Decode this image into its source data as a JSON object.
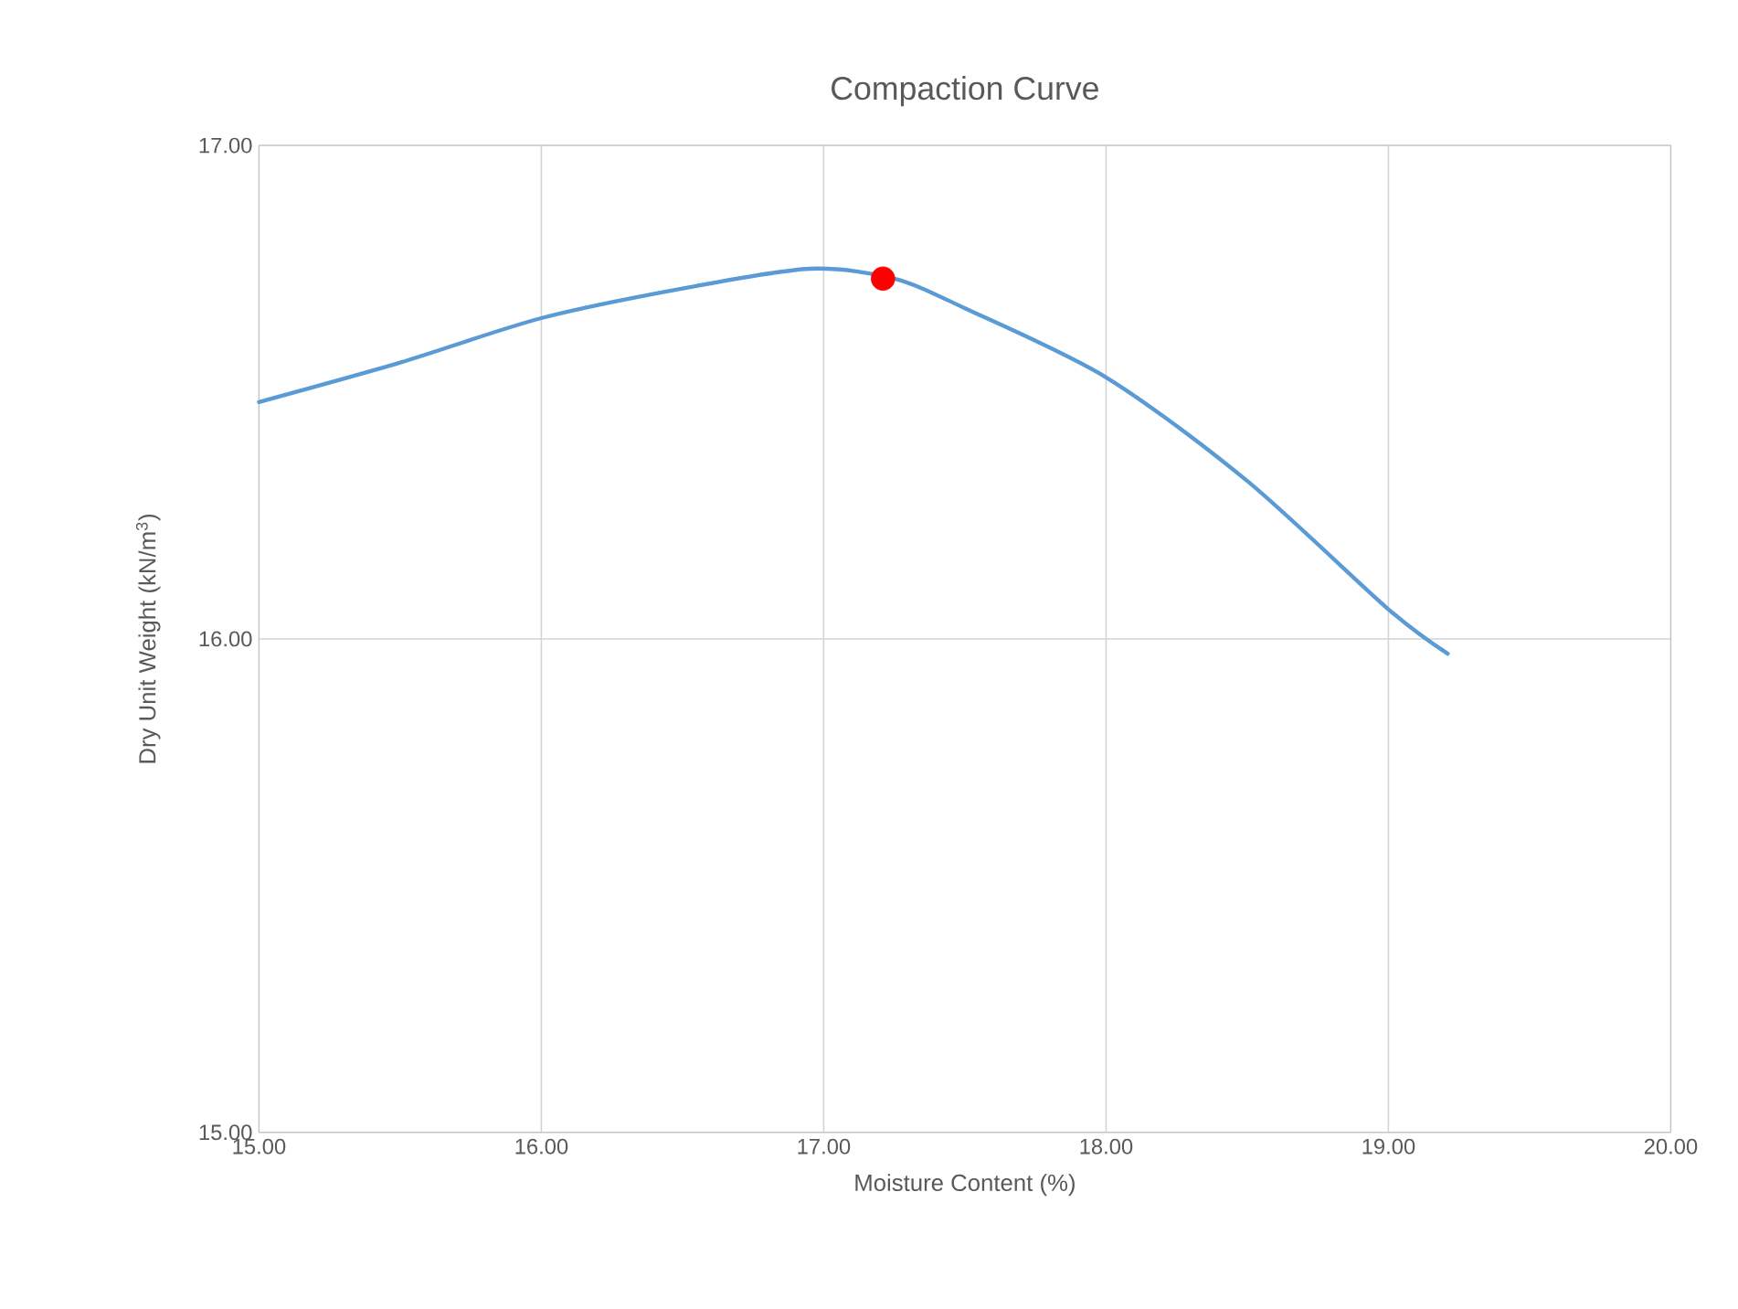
{
  "chart_data": {
    "type": "line",
    "title": "Compaction Curve",
    "xlabel": "Moisture Content (%)",
    "ylabel": "Dry Unit Weight (kN/m$^{3}$)",
    "xlim": [
      15,
      20
    ],
    "ylim": [
      15,
      17
    ],
    "xticks": [
      {
        "value": 15,
        "label": "15.00"
      },
      {
        "value": 16,
        "label": "16.00"
      },
      {
        "value": 17,
        "label": "17.00"
      },
      {
        "value": 18,
        "label": "18.00"
      },
      {
        "value": 19,
        "label": "19.00"
      },
      {
        "value": 20,
        "label": "20.00"
      }
    ],
    "yticks": [
      {
        "value": 15,
        "label": "15.00"
      },
      {
        "value": 16,
        "label": "16.00"
      },
      {
        "value": 17,
        "label": "17.00"
      }
    ],
    "grid": true,
    "series": [
      {
        "color": "#5b9bd5",
        "marker": "none",
        "x": [
          15.0,
          15.5,
          16.0,
          16.5,
          16.95,
          17.25,
          17.5,
          18.0,
          18.5,
          19.0,
          19.21
        ],
        "values": [
          16.48,
          16.56,
          16.65,
          16.71,
          16.75,
          16.73,
          16.67,
          16.53,
          16.32,
          16.06,
          15.97
        ]
      },
      {
        "type": "scatter",
        "color": "#ff0000",
        "marker": "circle",
        "x": [
          17.21
        ],
        "values": [
          16.73
        ]
      }
    ]
  }
}
